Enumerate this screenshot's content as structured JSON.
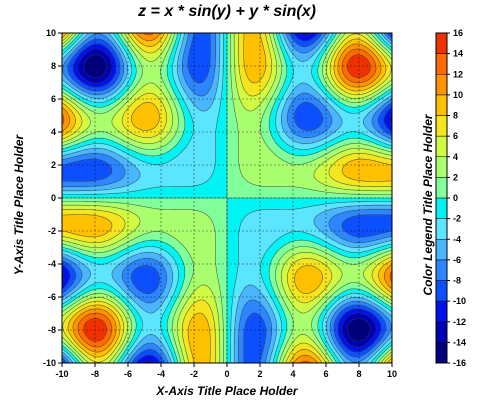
{
  "chart_data": {
    "type": "heatmap",
    "subtype": "filled-contour",
    "title": "z = x * sin(y) + y * sin(x)",
    "function": "x * sin(y) + y * sin(x)",
    "xlabel": "X-Axis Title Place Holder",
    "ylabel": "Y-Axis Title Place Holder",
    "colorbar_label": "Color Legend Title Place Holder",
    "xlim": [
      -10,
      10
    ],
    "ylim": [
      -10,
      10
    ],
    "x_ticks": [
      "-10",
      "-8",
      "-6",
      "-4",
      "-2",
      "0",
      "2",
      "4",
      "6",
      "8",
      "10"
    ],
    "y_ticks": [
      "-10",
      "-8",
      "-6",
      "-4",
      "-2",
      "0",
      "2",
      "4",
      "6",
      "8",
      "10"
    ],
    "colorbar_range": [
      -16,
      16
    ],
    "colorbar_step": 2,
    "colorbar_ticks": [
      "16",
      "14",
      "12",
      "10",
      "8",
      "6",
      "4",
      "2",
      "0",
      "-2",
      "-4",
      "-6",
      "-8",
      "-10",
      "-12",
      "-14",
      "-16"
    ],
    "grid": true,
    "grid_style": "dashed",
    "colormap": [
      "#00007f",
      "#0000b5",
      "#0011ee",
      "#0b4fff",
      "#2b86ff",
      "#4ab6ff",
      "#5ce5ff",
      "#00f4f4",
      "#80ff9a",
      "#a9ff6e",
      "#d1fb42",
      "#f5e51f",
      "#ffc000",
      "#ff9400",
      "#ff6a00",
      "#f03000"
    ]
  }
}
